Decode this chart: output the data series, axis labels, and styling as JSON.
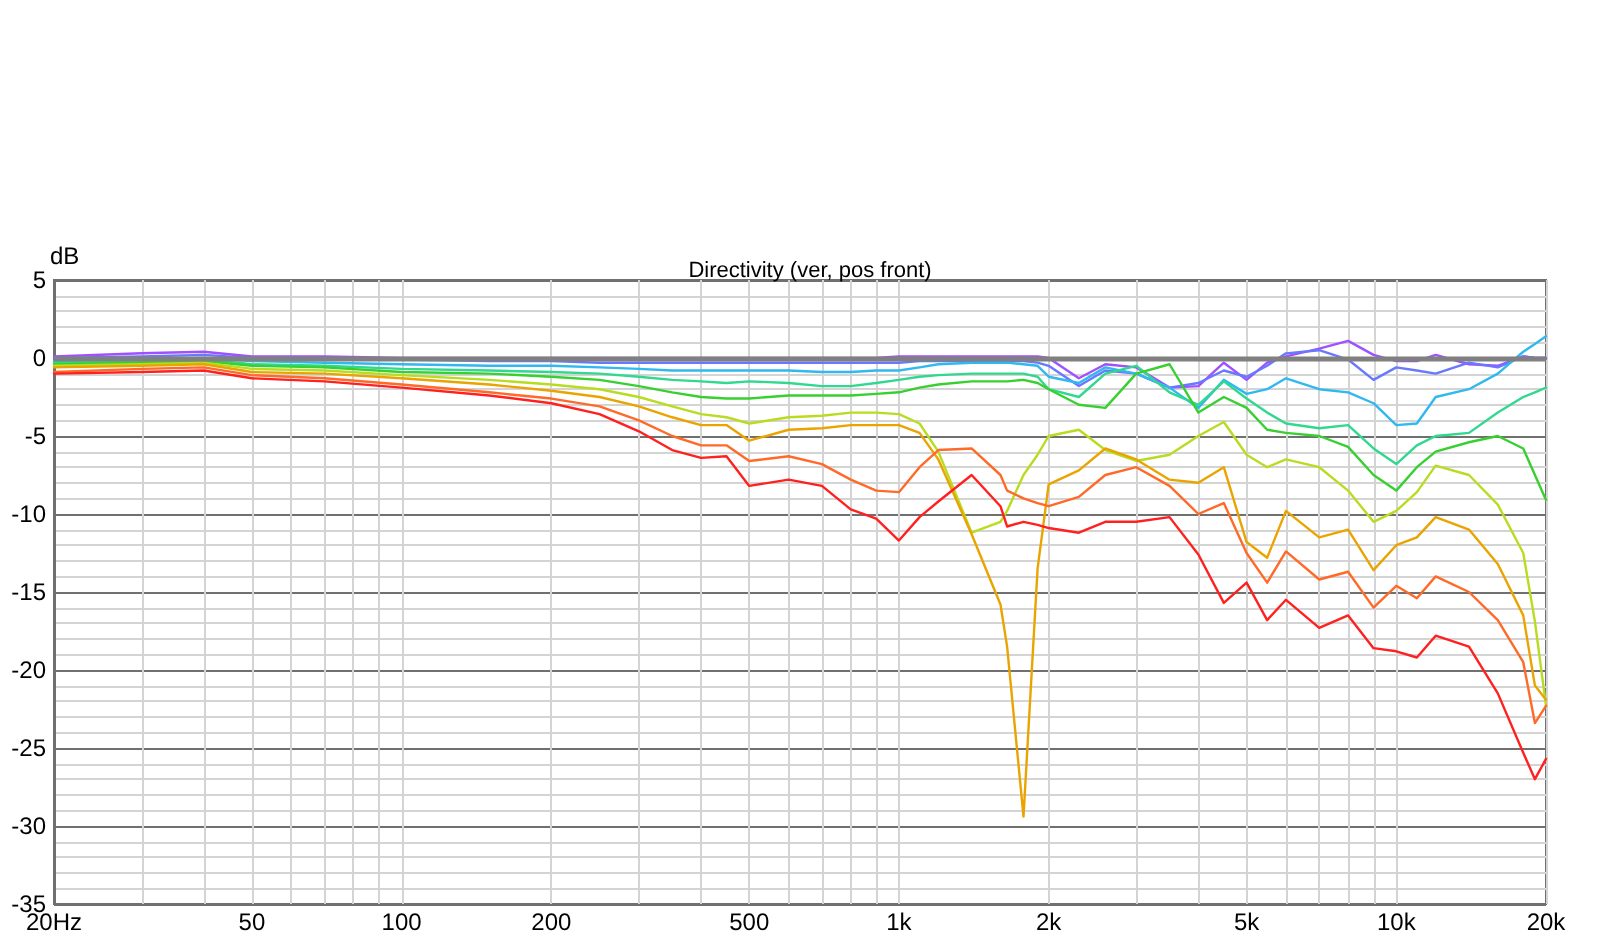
{
  "chart_data": {
    "type": "line",
    "title": "Directivity (ver, pos front)",
    "ylabel": "dB",
    "x": [
      20,
      30,
      40,
      50,
      70,
      100,
      150,
      200,
      250,
      300,
      350,
      400,
      450,
      500,
      600,
      700,
      800,
      900,
      1000,
      1100,
      1200,
      1400,
      1600,
      1650,
      1780,
      1900,
      2000,
      2300,
      2600,
      3000,
      3500,
      4000,
      4500,
      5000,
      5500,
      6000,
      7000,
      8000,
      9000,
      10000,
      11000,
      12000,
      14000,
      16000,
      18000,
      19000,
      20000
    ],
    "series": [
      {
        "color": "#a050ff",
        "values": [
          0.1,
          0.3,
          0.4,
          0.1,
          0.1,
          0,
          0,
          0,
          0,
          0,
          0,
          0,
          0,
          0,
          0,
          0,
          0,
          0,
          0.1,
          0.1,
          0.1,
          0.1,
          0.1,
          0.1,
          0.1,
          0.1,
          0,
          -1.3,
          -0.4,
          -0.6,
          -1.9,
          -1.8,
          -0.3,
          -1.4,
          -0.3,
          0.1,
          0.6,
          1.1,
          0.2,
          -0.2,
          -0.2,
          0.2,
          -0.4,
          -0.5,
          0.1,
          0,
          0
        ]
      },
      {
        "color": "#6878ff",
        "values": [
          0,
          0.1,
          0.2,
          0,
          0,
          -0.1,
          -0.2,
          -0.2,
          -0.3,
          -0.3,
          -0.3,
          -0.3,
          -0.3,
          -0.3,
          -0.3,
          -0.3,
          -0.3,
          -0.3,
          -0.3,
          -0.2,
          -0.2,
          -0.2,
          -0.2,
          -0.2,
          -0.2,
          -0.3,
          -0.5,
          -1.8,
          -0.8,
          -1.0,
          -1.9,
          -1.6,
          -0.8,
          -1.2,
          -0.5,
          0.3,
          0.5,
          -0.1,
          -1.4,
          -0.6,
          -0.8,
          -1.0,
          -0.3,
          -0.6,
          0.1,
          0,
          0
        ]
      },
      {
        "color": "#30b8f0",
        "values": [
          -0.2,
          -0.1,
          0,
          -0.2,
          -0.3,
          -0.4,
          -0.5,
          -0.5,
          -0.6,
          -0.7,
          -0.8,
          -0.8,
          -0.8,
          -0.8,
          -0.8,
          -0.9,
          -0.9,
          -0.8,
          -0.8,
          -0.6,
          -0.4,
          -0.3,
          -0.3,
          -0.3,
          -0.4,
          -0.5,
          -1.2,
          -1.6,
          -0.6,
          -1.0,
          -1.9,
          -3.2,
          -1.4,
          -2.3,
          -2.0,
          -1.3,
          -2.0,
          -2.2,
          -2.9,
          -4.3,
          -4.2,
          -2.5,
          -2.0,
          -1.0,
          0.4,
          0.9,
          1.4
        ]
      },
      {
        "color": "#30d890",
        "values": [
          -0.3,
          -0.2,
          -0.1,
          -0.4,
          -0.5,
          -0.7,
          -0.8,
          -0.9,
          -1.0,
          -1.2,
          -1.4,
          -1.5,
          -1.6,
          -1.5,
          -1.6,
          -1.8,
          -1.8,
          -1.6,
          -1.4,
          -1.2,
          -1.1,
          -1.0,
          -1.0,
          -1.0,
          -1.0,
          -1.2,
          -2.0,
          -2.5,
          -1.0,
          -0.5,
          -2.2,
          -3.0,
          -1.5,
          -2.6,
          -3.5,
          -4.2,
          -4.5,
          -4.3,
          -5.8,
          -6.8,
          -5.6,
          -5.0,
          -4.8,
          -3.5,
          -2.5,
          -2.2,
          -1.9
        ]
      },
      {
        "color": "#38d030",
        "values": [
          -0.4,
          -0.3,
          -0.2,
          -0.5,
          -0.6,
          -0.9,
          -1.0,
          -1.2,
          -1.4,
          -1.8,
          -2.2,
          -2.5,
          -2.6,
          -2.6,
          -2.4,
          -2.4,
          -2.4,
          -2.3,
          -2.2,
          -1.9,
          -1.7,
          -1.5,
          -1.5,
          -1.5,
          -1.4,
          -1.6,
          -2.0,
          -3.0,
          -3.2,
          -1.0,
          -0.4,
          -3.5,
          -2.5,
          -3.2,
          -4.6,
          -4.8,
          -5.0,
          -5.7,
          -7.5,
          -8.5,
          -7.0,
          -6.0,
          -5.4,
          -5.0,
          -5.8,
          -7.5,
          -9.1
        ]
      },
      {
        "color": "#b8dc20",
        "values": [
          -0.5,
          -0.4,
          -0.3,
          -0.7,
          -0.8,
          -1.1,
          -1.4,
          -1.7,
          -2.0,
          -2.5,
          -3.1,
          -3.6,
          -3.8,
          -4.2,
          -3.8,
          -3.7,
          -3.5,
          -3.5,
          -3.6,
          -4.2,
          -6.0,
          -11.2,
          -10.5,
          -9.8,
          -7.5,
          -6.2,
          -5.0,
          -4.6,
          -5.9,
          -6.6,
          -6.2,
          -5.0,
          -4.1,
          -6.2,
          -7.0,
          -6.5,
          -7.0,
          -8.5,
          -10.5,
          -9.8,
          -8.6,
          -6.9,
          -7.5,
          -9.4,
          -12.5,
          -16.9,
          -22.3
        ]
      },
      {
        "color": "#eaa400",
        "values": [
          -0.6,
          -0.5,
          -0.4,
          -0.9,
          -1.0,
          -1.3,
          -1.7,
          -2.1,
          -2.5,
          -3.1,
          -3.8,
          -4.3,
          -4.3,
          -5.3,
          -4.6,
          -4.5,
          -4.3,
          -4.3,
          -4.3,
          -4.8,
          -6.5,
          -11.3,
          -15.8,
          -18.5,
          -29.4,
          -13.5,
          -8.1,
          -7.2,
          -5.8,
          -6.5,
          -7.8,
          -8.0,
          -7.0,
          -11.8,
          -12.8,
          -9.8,
          -11.5,
          -11.0,
          -13.6,
          -12.0,
          -11.5,
          -10.2,
          -11.0,
          -13.2,
          -16.5,
          -21.0,
          -21.9
        ]
      },
      {
        "color": "#ff6a28",
        "values": [
          -0.9,
          -0.7,
          -0.6,
          -1.1,
          -1.3,
          -1.7,
          -2.2,
          -2.6,
          -3.1,
          -4.0,
          -5.0,
          -5.6,
          -5.6,
          -6.6,
          -6.3,
          -6.8,
          -7.8,
          -8.5,
          -8.6,
          -7.0,
          -5.9,
          -5.8,
          -7.5,
          -8.5,
          -9.0,
          -9.3,
          -9.5,
          -8.9,
          -7.5,
          -7.0,
          -8.2,
          -10.0,
          -9.3,
          -12.5,
          -14.4,
          -12.4,
          -14.2,
          -13.7,
          -16.0,
          -14.6,
          -15.4,
          -14.0,
          -15.0,
          -16.8,
          -19.5,
          -23.4,
          -22.3
        ]
      },
      {
        "color": "#ff2020",
        "values": [
          -1.0,
          -0.9,
          -0.8,
          -1.3,
          -1.5,
          -1.9,
          -2.4,
          -2.9,
          -3.6,
          -4.7,
          -5.9,
          -6.4,
          -6.3,
          -8.2,
          -7.8,
          -8.2,
          -9.7,
          -10.3,
          -11.7,
          -10.2,
          -9.2,
          -7.5,
          -9.5,
          -10.8,
          -10.5,
          -10.7,
          -10.9,
          -11.2,
          -10.5,
          -10.5,
          -10.2,
          -12.6,
          -15.7,
          -14.4,
          -16.8,
          -15.5,
          -17.3,
          -16.5,
          -18.6,
          -18.8,
          -19.2,
          -17.8,
          -18.5,
          -21.5,
          -25.3,
          -27.0,
          -25.7
        ]
      }
    ],
    "log": "x",
    "xlim": [
      20,
      20000
    ],
    "ylim": [
      -35,
      5
    ],
    "xticks": [
      {
        "value": 20,
        "label": "20Hz"
      },
      {
        "value": 30,
        "label": null
      },
      {
        "value": 40,
        "label": null
      },
      50,
      {
        "value": 60,
        "label": null
      },
      {
        "value": 70,
        "label": null
      },
      {
        "value": 80,
        "label": null
      },
      {
        "value": 90,
        "label": null
      },
      100,
      200,
      {
        "value": 300,
        "label": null
      },
      {
        "value": 400,
        "label": null
      },
      500,
      {
        "value": 600,
        "label": null
      },
      {
        "value": 700,
        "label": null
      },
      {
        "value": 800,
        "label": null
      },
      {
        "value": 900,
        "label": null
      },
      {
        "value": 1000,
        "label": "1k"
      },
      {
        "value": 2000,
        "label": "2k"
      },
      {
        "value": 3000,
        "label": null
      },
      {
        "value": 4000,
        "label": null
      },
      {
        "value": 5000,
        "label": "5k"
      },
      {
        "value": 6000,
        "label": null
      },
      {
        "value": 7000,
        "label": null
      },
      {
        "value": 8000,
        "label": null
      },
      {
        "value": 9000,
        "label": null
      },
      {
        "value": 10000,
        "label": "10k"
      },
      {
        "value": 20000,
        "label": "20k"
      }
    ],
    "yticks": [
      -35,
      -30,
      -25,
      -20,
      -15,
      -10,
      -5,
      0,
      5
    ],
    "ref_lines": [
      {
        "axis": "y",
        "value": 0,
        "color": "#808080"
      }
    ],
    "grid": true,
    "marker": "none",
    "line_style": "solid"
  }
}
